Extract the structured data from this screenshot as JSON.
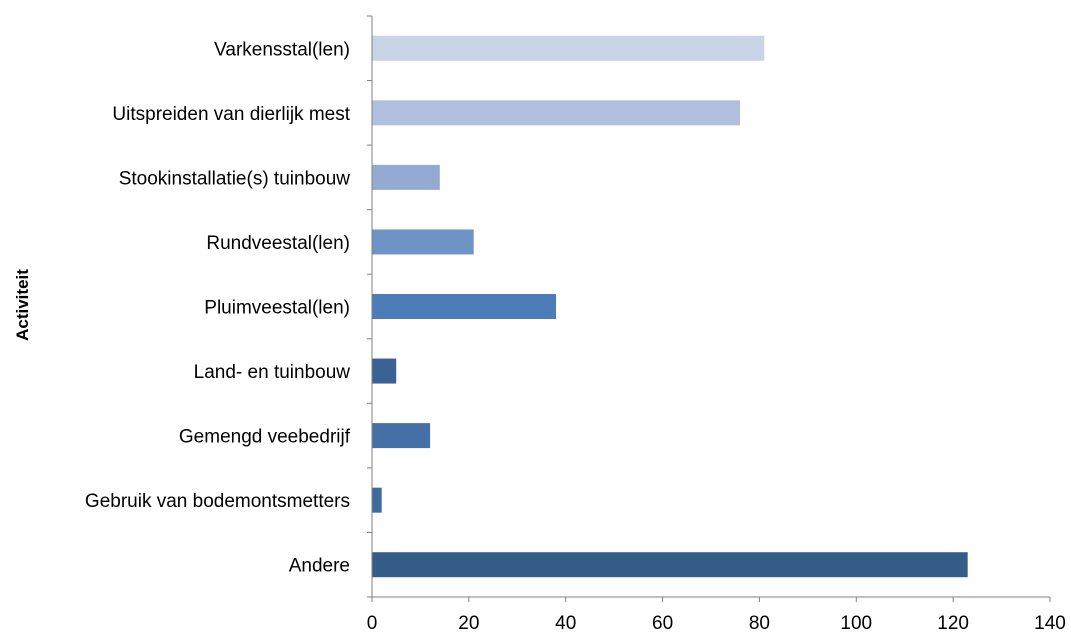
{
  "chart_data": {
    "type": "bar",
    "orientation": "horizontal",
    "title": "",
    "xlabel": "",
    "ylabel": "Activiteit",
    "categories": [
      "Varkensstal(len)",
      "Uitspreiden van dierlijk mest",
      "Stookinstallatie(s) tuinbouw",
      "Rundveestal(len)",
      "Pluimveestal(len)",
      "Land- en tuinbouw",
      "Gemengd veebedrijf",
      "Gebruik van bodemontsmetters",
      "Andere"
    ],
    "values": [
      81,
      76,
      14,
      21,
      38,
      5,
      12,
      2,
      123
    ],
    "colors": [
      "#c9d3e6",
      "#b0c0de",
      "#95aad3",
      "#6e94c6",
      "#4c7db9",
      "#3a6294",
      "#4570a7",
      "#3f6aa0",
      "#355d8a"
    ],
    "xlim": [
      0,
      140
    ],
    "xticks": [
      "0",
      "20",
      "40",
      "60",
      "80",
      "100",
      "120",
      "140"
    ],
    "grid": false,
    "legend": "none"
  }
}
